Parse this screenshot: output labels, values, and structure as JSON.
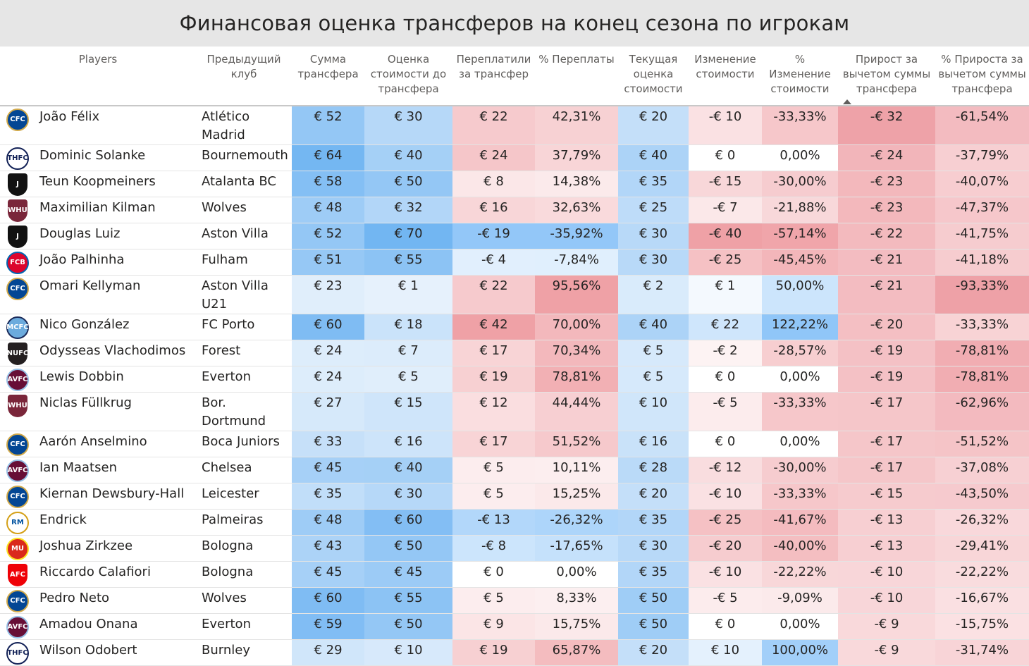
{
  "title": "Финансовая оценка трансферов на конец сезона по игрокам",
  "columns": {
    "player": "Players",
    "club": "Предыдущий клуб",
    "fee": "Сумма трансфера",
    "value_before": "Оценка стоимости до трансфера",
    "overpaid": "Переплатили за трансфер",
    "overpaid_pct": "% Переплаты",
    "current_value": "Текущая оценка стоимости",
    "value_change": "Изменение стоимости",
    "value_change_pct": "% Изменение стоимости",
    "gain_net": "Прирост за вычетом суммы трансфера",
    "gain_net_pct": "% Прироста за вычетом суммы трансфера"
  },
  "sorted_column": "gain_net",
  "colors": {
    "title_bg": "#e6e6e6",
    "blue_scale": "#6fb4f2",
    "red_scale": "#ee9a9f"
  },
  "rows": [
    {
      "logo": "chelsea-crest-icon",
      "player": "João Félix",
      "club": "Atlético Madrid",
      "fee": "€ 52",
      "value_before": "€ 30",
      "overpaid": "€ 22",
      "overpaid_pct": "42,31%",
      "current_value": "€ 20",
      "value_change": "-€ 10",
      "value_change_pct": "-33,33%",
      "gain_net": "-€ 32",
      "gain_net_pct": "-61,54%"
    },
    {
      "logo": "tottenham-crest-icon",
      "player": "Dominic Solanke",
      "club": "Bournemouth",
      "fee": "€ 64",
      "value_before": "€ 40",
      "overpaid": "€ 24",
      "overpaid_pct": "37,79%",
      "current_value": "€ 40",
      "value_change": "€ 0",
      "value_change_pct": "0,00%",
      "gain_net": "-€ 24",
      "gain_net_pct": "-37,79%"
    },
    {
      "logo": "juventus-crest-icon",
      "player": "Teun Koopmeiners",
      "club": "Atalanta BC",
      "fee": "€ 58",
      "value_before": "€ 50",
      "overpaid": "€ 8",
      "overpaid_pct": "14,38%",
      "current_value": "€ 35",
      "value_change": "-€ 15",
      "value_change_pct": "-30,00%",
      "gain_net": "-€ 23",
      "gain_net_pct": "-40,07%"
    },
    {
      "logo": "west-ham-crest-icon",
      "player": "Maximilian Kilman",
      "club": "Wolves",
      "fee": "€ 48",
      "value_before": "€ 32",
      "overpaid": "€ 16",
      "overpaid_pct": "32,63%",
      "current_value": "€ 25",
      "value_change": "-€ 7",
      "value_change_pct": "-21,88%",
      "gain_net": "-€ 23",
      "gain_net_pct": "-47,37%"
    },
    {
      "logo": "juventus-crest-icon",
      "player": "Douglas Luiz",
      "club": "Aston Villa",
      "fee": "€ 52",
      "value_before": "€ 70",
      "overpaid": "-€ 19",
      "overpaid_pct": "-35,92%",
      "current_value": "€ 30",
      "value_change": "-€ 40",
      "value_change_pct": "-57,14%",
      "gain_net": "-€ 22",
      "gain_net_pct": "-41,75%"
    },
    {
      "logo": "bayern-crest-icon",
      "player": "João Palhinha",
      "club": "Fulham",
      "fee": "€ 51",
      "value_before": "€ 55",
      "overpaid": "-€ 4",
      "overpaid_pct": "-7,84%",
      "current_value": "€ 30",
      "value_change": "-€ 25",
      "value_change_pct": "-45,45%",
      "gain_net": "-€ 21",
      "gain_net_pct": "-41,18%"
    },
    {
      "logo": "chelsea-crest-icon",
      "player": "Omari Kellyman",
      "club": "Aston Villa U21",
      "fee": "€ 23",
      "value_before": "€ 1",
      "overpaid": "€ 22",
      "overpaid_pct": "95,56%",
      "current_value": "€ 2",
      "value_change": "€ 1",
      "value_change_pct": "50,00%",
      "gain_net": "-€ 21",
      "gain_net_pct": "-93,33%"
    },
    {
      "logo": "man-city-crest-icon",
      "player": "Nico González",
      "club": "FC Porto",
      "fee": "€ 60",
      "value_before": "€ 18",
      "overpaid": "€ 42",
      "overpaid_pct": "70,00%",
      "current_value": "€ 40",
      "value_change": "€ 22",
      "value_change_pct": "122,22%",
      "gain_net": "-€ 20",
      "gain_net_pct": "-33,33%"
    },
    {
      "logo": "newcastle-crest-icon",
      "player": "Odysseas Vlachodimos",
      "club": "Forest",
      "fee": "€ 24",
      "value_before": "€ 7",
      "overpaid": "€ 17",
      "overpaid_pct": "70,34%",
      "current_value": "€ 5",
      "value_change": "-€ 2",
      "value_change_pct": "-28,57%",
      "gain_net": "-€ 19",
      "gain_net_pct": "-78,81%"
    },
    {
      "logo": "aston-villa-crest-icon",
      "player": "Lewis Dobbin",
      "club": "Everton",
      "fee": "€ 24",
      "value_before": "€ 5",
      "overpaid": "€ 19",
      "overpaid_pct": "78,81%",
      "current_value": "€ 5",
      "value_change": "€ 0",
      "value_change_pct": "0,00%",
      "gain_net": "-€ 19",
      "gain_net_pct": "-78,81%"
    },
    {
      "logo": "west-ham-crest-icon",
      "player": "Niclas Füllkrug",
      "club": "Bor. Dortmund",
      "fee": "€ 27",
      "value_before": "€ 15",
      "overpaid": "€ 12",
      "overpaid_pct": "44,44%",
      "current_value": "€ 10",
      "value_change": "-€ 5",
      "value_change_pct": "-33,33%",
      "gain_net": "-€ 17",
      "gain_net_pct": "-62,96%"
    },
    {
      "logo": "chelsea-crest-icon",
      "player": "Aarón Anselmino",
      "club": "Boca Juniors",
      "fee": "€ 33",
      "value_before": "€ 16",
      "overpaid": "€ 17",
      "overpaid_pct": "51,52%",
      "current_value": "€ 16",
      "value_change": "€ 0",
      "value_change_pct": "0,00%",
      "gain_net": "-€ 17",
      "gain_net_pct": "-51,52%"
    },
    {
      "logo": "aston-villa-crest-icon",
      "player": "Ian Maatsen",
      "club": "Chelsea",
      "fee": "€ 45",
      "value_before": "€ 40",
      "overpaid": "€ 5",
      "overpaid_pct": "10,11%",
      "current_value": "€ 28",
      "value_change": "-€ 12",
      "value_change_pct": "-30,00%",
      "gain_net": "-€ 17",
      "gain_net_pct": "-37,08%"
    },
    {
      "logo": "chelsea-crest-icon",
      "player": "Kiernan Dewsbury-Hall",
      "club": "Leicester",
      "fee": "€ 35",
      "value_before": "€ 30",
      "overpaid": "€ 5",
      "overpaid_pct": "15,25%",
      "current_value": "€ 20",
      "value_change": "-€ 10",
      "value_change_pct": "-33,33%",
      "gain_net": "-€ 15",
      "gain_net_pct": "-43,50%"
    },
    {
      "logo": "real-madrid-crest-icon",
      "player": "Endrick",
      "club": "Palmeiras",
      "fee": "€ 48",
      "value_before": "€ 60",
      "overpaid": "-€ 13",
      "overpaid_pct": "-26,32%",
      "current_value": "€ 35",
      "value_change": "-€ 25",
      "value_change_pct": "-41,67%",
      "gain_net": "-€ 13",
      "gain_net_pct": "-26,32%"
    },
    {
      "logo": "man-united-crest-icon",
      "player": "Joshua Zirkzee",
      "club": "Bologna",
      "fee": "€ 43",
      "value_before": "€ 50",
      "overpaid": "-€ 8",
      "overpaid_pct": "-17,65%",
      "current_value": "€ 30",
      "value_change": "-€ 20",
      "value_change_pct": "-40,00%",
      "gain_net": "-€ 13",
      "gain_net_pct": "-29,41%"
    },
    {
      "logo": "arsenal-crest-icon",
      "player": "Riccardo Calafiori",
      "club": "Bologna",
      "fee": "€ 45",
      "value_before": "€ 45",
      "overpaid": "€ 0",
      "overpaid_pct": "0,00%",
      "current_value": "€ 35",
      "value_change": "-€ 10",
      "value_change_pct": "-22,22%",
      "gain_net": "-€ 10",
      "gain_net_pct": "-22,22%"
    },
    {
      "logo": "chelsea-crest-icon",
      "player": "Pedro Neto",
      "club": "Wolves",
      "fee": "€ 60",
      "value_before": "€ 55",
      "overpaid": "€ 5",
      "overpaid_pct": "8,33%",
      "current_value": "€ 50",
      "value_change": "-€ 5",
      "value_change_pct": "-9,09%",
      "gain_net": "-€ 10",
      "gain_net_pct": "-16,67%"
    },
    {
      "logo": "aston-villa-crest-icon",
      "player": "Amadou Onana",
      "club": "Everton",
      "fee": "€ 59",
      "value_before": "€ 50",
      "overpaid": "€ 9",
      "overpaid_pct": "15,75%",
      "current_value": "€ 50",
      "value_change": "€ 0",
      "value_change_pct": "0,00%",
      "gain_net": "-€ 9",
      "gain_net_pct": "-15,75%"
    },
    {
      "logo": "tottenham-crest-icon",
      "player": "Wilson Odobert",
      "club": "Burnley",
      "fee": "€ 29",
      "value_before": "€ 10",
      "overpaid": "€ 19",
      "overpaid_pct": "65,87%",
      "current_value": "€ 20",
      "value_change": "€ 10",
      "value_change_pct": "100,00%",
      "gain_net": "-€ 9",
      "gain_net_pct": "-31,74%"
    }
  ]
}
